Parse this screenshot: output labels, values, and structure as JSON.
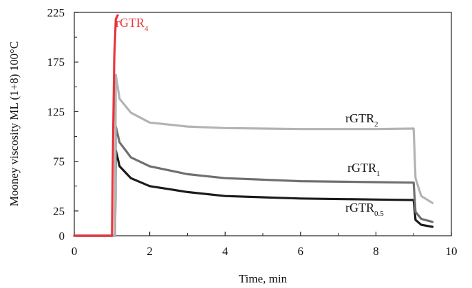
{
  "chart_data": {
    "type": "line",
    "title": "",
    "xlabel": "Time, min",
    "ylabel": "Mooney viscosity ML (1+8) 100°C",
    "xlim": [
      0,
      10
    ],
    "ylim": [
      0,
      225
    ],
    "x_ticks": [
      0,
      2,
      4,
      6,
      8,
      10
    ],
    "y_ticks": [
      0,
      25,
      75,
      125,
      175,
      225
    ],
    "x_tick_labels": [
      "0",
      "2",
      "4",
      "6",
      "8",
      "10"
    ],
    "y_tick_labels": [
      "0",
      "25",
      "75",
      "125",
      "175",
      "225"
    ],
    "grid": false,
    "legend": "inline labels",
    "series": [
      {
        "label_base": "rGTR",
        "label_sub": "0.5",
        "color": "#1a1a1a",
        "points": [
          [
            0,
            0
          ],
          [
            1.08,
            0
          ],
          [
            1.1,
            86
          ],
          [
            1.2,
            70
          ],
          [
            1.5,
            58
          ],
          [
            2,
            50
          ],
          [
            3,
            44
          ],
          [
            4,
            40
          ],
          [
            6,
            37.5
          ],
          [
            8,
            36.5
          ],
          [
            9.0,
            36
          ],
          [
            9.05,
            16
          ],
          [
            9.2,
            11
          ],
          [
            9.5,
            9
          ]
        ]
      },
      {
        "label_base": "rGTR",
        "label_sub": "1",
        "color": "#6f6f6f",
        "points": [
          [
            0,
            0
          ],
          [
            1.08,
            0
          ],
          [
            1.1,
            110
          ],
          [
            1.2,
            94
          ],
          [
            1.5,
            79
          ],
          [
            2,
            70
          ],
          [
            3,
            62
          ],
          [
            4,
            58
          ],
          [
            6,
            55
          ],
          [
            8,
            54
          ],
          [
            9.0,
            53.5
          ],
          [
            9.05,
            24
          ],
          [
            9.2,
            17
          ],
          [
            9.5,
            14
          ]
        ]
      },
      {
        "label_base": "rGTR",
        "label_sub": "2",
        "color": "#b3b3b3",
        "points": [
          [
            0,
            0
          ],
          [
            1.08,
            0
          ],
          [
            1.1,
            162
          ],
          [
            1.2,
            138
          ],
          [
            1.5,
            124
          ],
          [
            2,
            114
          ],
          [
            3,
            110
          ],
          [
            4,
            108.5
          ],
          [
            6,
            107.5
          ],
          [
            8,
            107.5
          ],
          [
            9.0,
            108
          ],
          [
            9.05,
            58
          ],
          [
            9.2,
            40
          ],
          [
            9.5,
            33
          ]
        ]
      },
      {
        "label_base": "rGTR",
        "label_sub": "4",
        "color": "#e8343a",
        "points": [
          [
            0,
            0
          ],
          [
            1.0,
            0
          ],
          [
            1.03,
            100
          ],
          [
            1.06,
            180
          ],
          [
            1.1,
            218
          ],
          [
            1.15,
            222
          ]
        ]
      }
    ]
  }
}
